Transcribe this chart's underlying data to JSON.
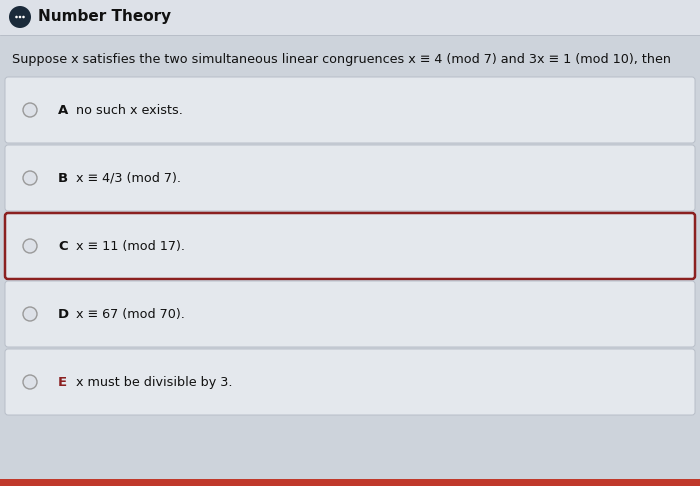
{
  "title": "Number Theory",
  "question": "Suppose x satisfies the two simultaneous linear congruences x ≡ 4 (mod 7) and 3x ≡ 1 (mod 10), then",
  "options": [
    {
      "label": "A",
      "text": "no such x exists."
    },
    {
      "label": "B",
      "text": "x ≡ 4/3 (mod 7)."
    },
    {
      "label": "C",
      "text": "x ≡ 11 (mod 17)."
    },
    {
      "label": "D",
      "text": "x ≡ 67 (mod 70)."
    },
    {
      "label": "E",
      "text": "x must be divisible by 3."
    }
  ],
  "highlighted_option": "C",
  "bg_color": "#cdd3db",
  "card_bg": "#e4e8ed",
  "card_border_normal": "#b8bec8",
  "card_border_highlight": "#8b2020",
  "header_bg": "#dde1e8",
  "title_color": "#111111",
  "question_color": "#111111",
  "option_label_bold_color": "#111111",
  "option_E_color": "#8b2020",
  "bottom_bar_color": "#c0392b",
  "icon_bg": "#1a2a3a",
  "radio_fill": "#dde1e8",
  "radio_edge": "#999999"
}
